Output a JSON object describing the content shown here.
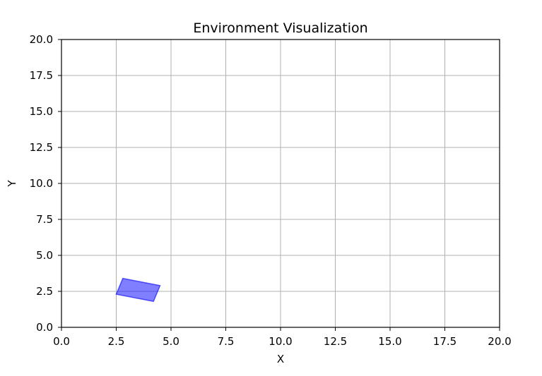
{
  "chart_data": {
    "type": "scatter",
    "title": "Environment Visualization",
    "xlabel": "X",
    "ylabel": "Y",
    "xlim": [
      0,
      20
    ],
    "ylim": [
      0,
      20
    ],
    "xticks": [
      "0.0",
      "2.5",
      "5.0",
      "7.5",
      "10.0",
      "12.5",
      "15.0",
      "17.5",
      "20.0"
    ],
    "yticks": [
      "0.0",
      "2.5",
      "5.0",
      "7.5",
      "10.0",
      "12.5",
      "15.0",
      "17.5",
      "20.0"
    ],
    "grid": true,
    "shapes": [
      {
        "kind": "polygon",
        "points": [
          [
            2.8,
            3.4
          ],
          [
            4.5,
            2.9
          ],
          [
            4.2,
            1.8
          ],
          [
            2.5,
            2.3
          ]
        ],
        "fill": "#0000ff",
        "fill_opacity": 0.5,
        "stroke": "#0000ff"
      }
    ]
  }
}
